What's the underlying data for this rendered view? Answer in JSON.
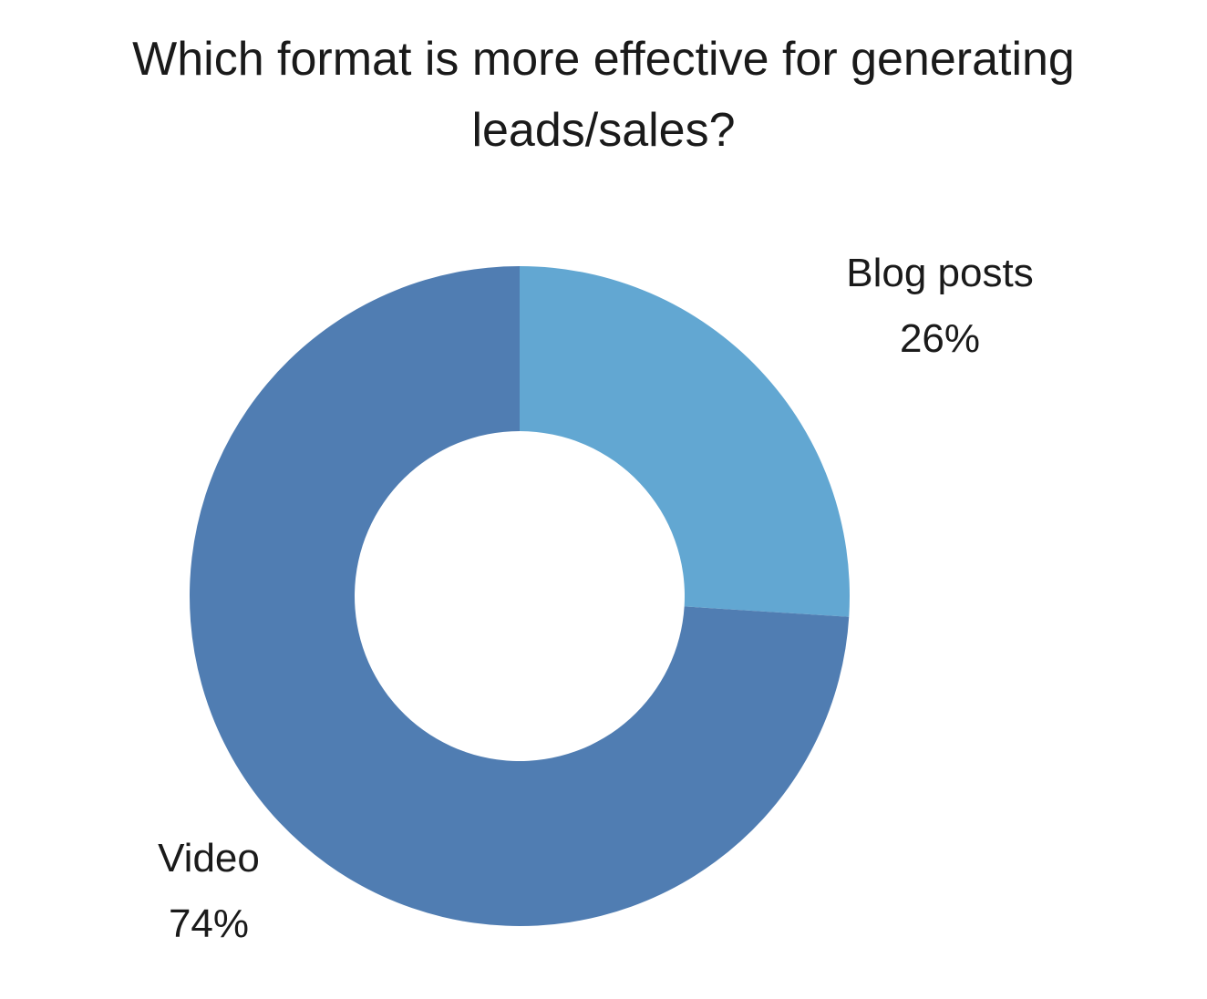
{
  "chart_data": {
    "type": "pie",
    "variant": "donut",
    "title_lines": [
      "Which format is more effective for generating",
      "leads/sales?"
    ],
    "slices": [
      {
        "label": "Blog posts",
        "value": 26,
        "value_label": "26%",
        "color": "#62a7d2"
      },
      {
        "label": "Video",
        "value": 74,
        "value_label": "74%",
        "color": "#507db2"
      }
    ],
    "start_angle": "12 o'clock",
    "direction": "clockwise",
    "legend": "none"
  }
}
